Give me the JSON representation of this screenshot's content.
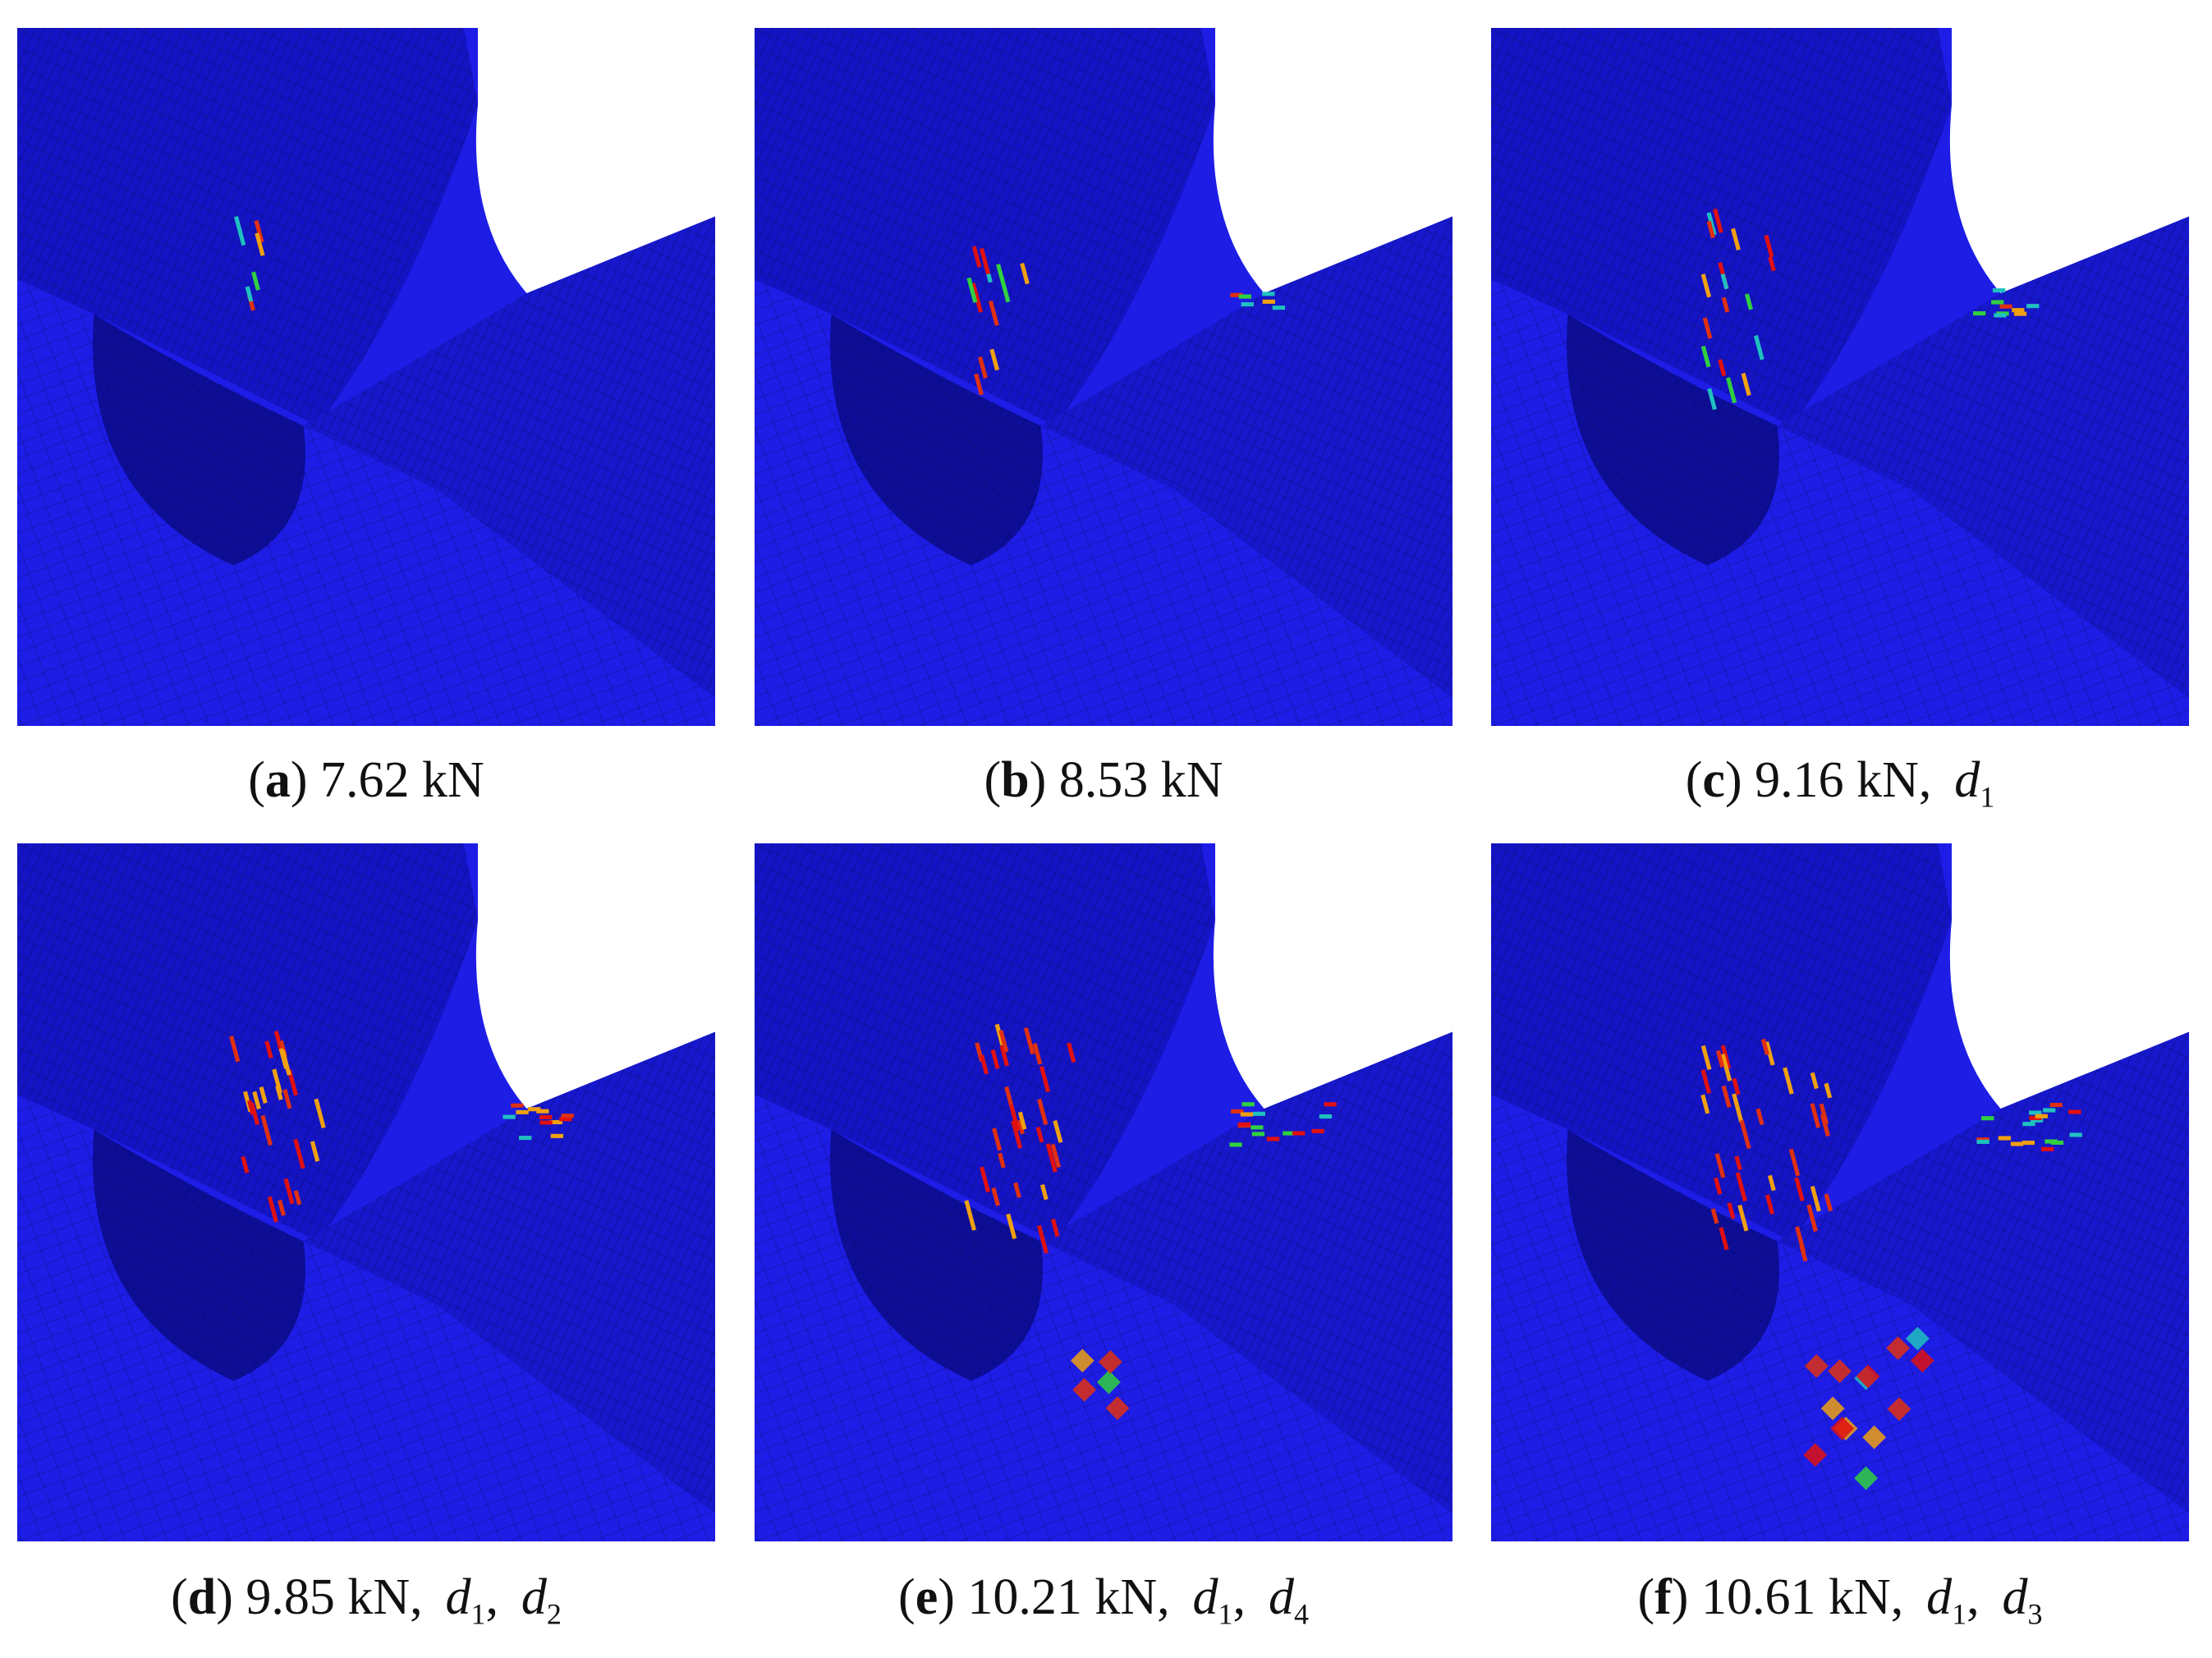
{
  "panels": [
    {
      "caption": [
        {
          "style": "roman",
          "text": "("
        },
        {
          "style": "bold",
          "text": "a"
        },
        {
          "style": "roman",
          "text": ") 7.62 kN"
        }
      ]
    },
    {
      "caption": [
        {
          "style": "roman",
          "text": "("
        },
        {
          "style": "bold",
          "text": "b"
        },
        {
          "style": "roman",
          "text": ") 8.53 kN"
        }
      ]
    },
    {
      "caption": [
        {
          "style": "roman",
          "text": "("
        },
        {
          "style": "bold",
          "text": "c"
        },
        {
          "style": "roman",
          "text": ") 9.16 kN,"
        },
        {
          "style": "italic",
          "text": "d"
        },
        {
          "style": "sub",
          "text": "1"
        }
      ]
    },
    {
      "caption": [
        {
          "style": "roman",
          "text": "("
        },
        {
          "style": "bold",
          "text": "d"
        },
        {
          "style": "roman",
          "text": ") 9.85 kN,"
        },
        {
          "style": "italic",
          "text": "d"
        },
        {
          "style": "sub",
          "text": "1"
        },
        {
          "style": "roman",
          "text": ","
        },
        {
          "style": "italic",
          "text": "d"
        },
        {
          "style": "sub",
          "text": "2"
        }
      ]
    },
    {
      "caption": [
        {
          "style": "roman",
          "text": "("
        },
        {
          "style": "bold",
          "text": "e"
        },
        {
          "style": "roman",
          "text": ") 10.21 kN,"
        },
        {
          "style": "italic",
          "text": "d"
        },
        {
          "style": "sub",
          "text": "1"
        },
        {
          "style": "roman",
          "text": ","
        },
        {
          "style": "italic",
          "text": "d"
        },
        {
          "style": "sub",
          "text": "4"
        }
      ]
    },
    {
      "caption": [
        {
          "style": "roman",
          "text": "("
        },
        {
          "style": "bold",
          "text": "f"
        },
        {
          "style": "roman",
          "text": ") 10.61 kN,"
        },
        {
          "style": "italic",
          "text": "d"
        },
        {
          "style": "sub",
          "text": "1"
        },
        {
          "style": "roman",
          "text": ","
        },
        {
          "style": "italic",
          "text": "d"
        },
        {
          "style": "sub",
          "text": "3"
        }
      ]
    }
  ]
}
